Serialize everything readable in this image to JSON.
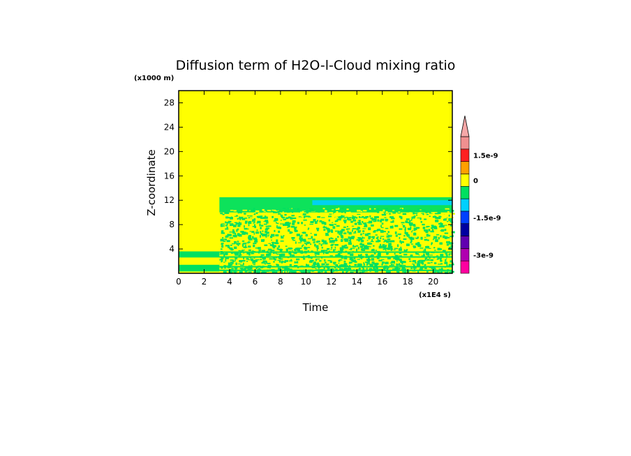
{
  "chart_data": {
    "type": "heatmap",
    "title": "Diffusion term of H2O-l-Cloud mixing ratio",
    "xlabel": "Time",
    "ylabel": "Z-coordinate",
    "x_unit": "(x1E4 s)",
    "y_unit": "(x1000 m)",
    "xlim": [
      0,
      21.5
    ],
    "ylim": [
      0,
      30
    ],
    "x_ticks": [
      0,
      2,
      4,
      6,
      8,
      10,
      12,
      14,
      16,
      18,
      20
    ],
    "y_ticks": [
      4,
      8,
      12,
      16,
      20,
      24,
      28
    ],
    "background_value_color": "#ffff00",
    "colorbar": {
      "levels": [
        "#ff00a0",
        "#b000b0",
        "#6000b0",
        "#0000a0",
        "#0040ff",
        "#00d0ff",
        "#00e060",
        "#ffff00",
        "#ffa000",
        "#ff2020",
        "#f09090"
      ],
      "extend_top_color": "#f5a8a8",
      "tick_labels": [
        "1.5e-9",
        "0",
        "-1.5e-9",
        "-3e-9"
      ]
    },
    "regions": [
      {
        "name": "green band upper",
        "x": [
          3.2,
          21.5
        ],
        "y": [
          10.0,
          12.5
        ],
        "color": "#00e060"
      },
      {
        "name": "cyan patch",
        "x": [
          10.5,
          21.5
        ],
        "y": [
          11.2,
          12.0
        ],
        "color": "#00d0ff"
      },
      {
        "name": "scattered convective layer",
        "x": [
          3.2,
          21.5
        ],
        "y": [
          0.3,
          9.5
        ],
        "color": "#00e060"
      },
      {
        "name": "low-level band",
        "x": [
          0,
          3.2
        ],
        "y": [
          0.3,
          3.6
        ],
        "color": "#00e060"
      }
    ]
  }
}
